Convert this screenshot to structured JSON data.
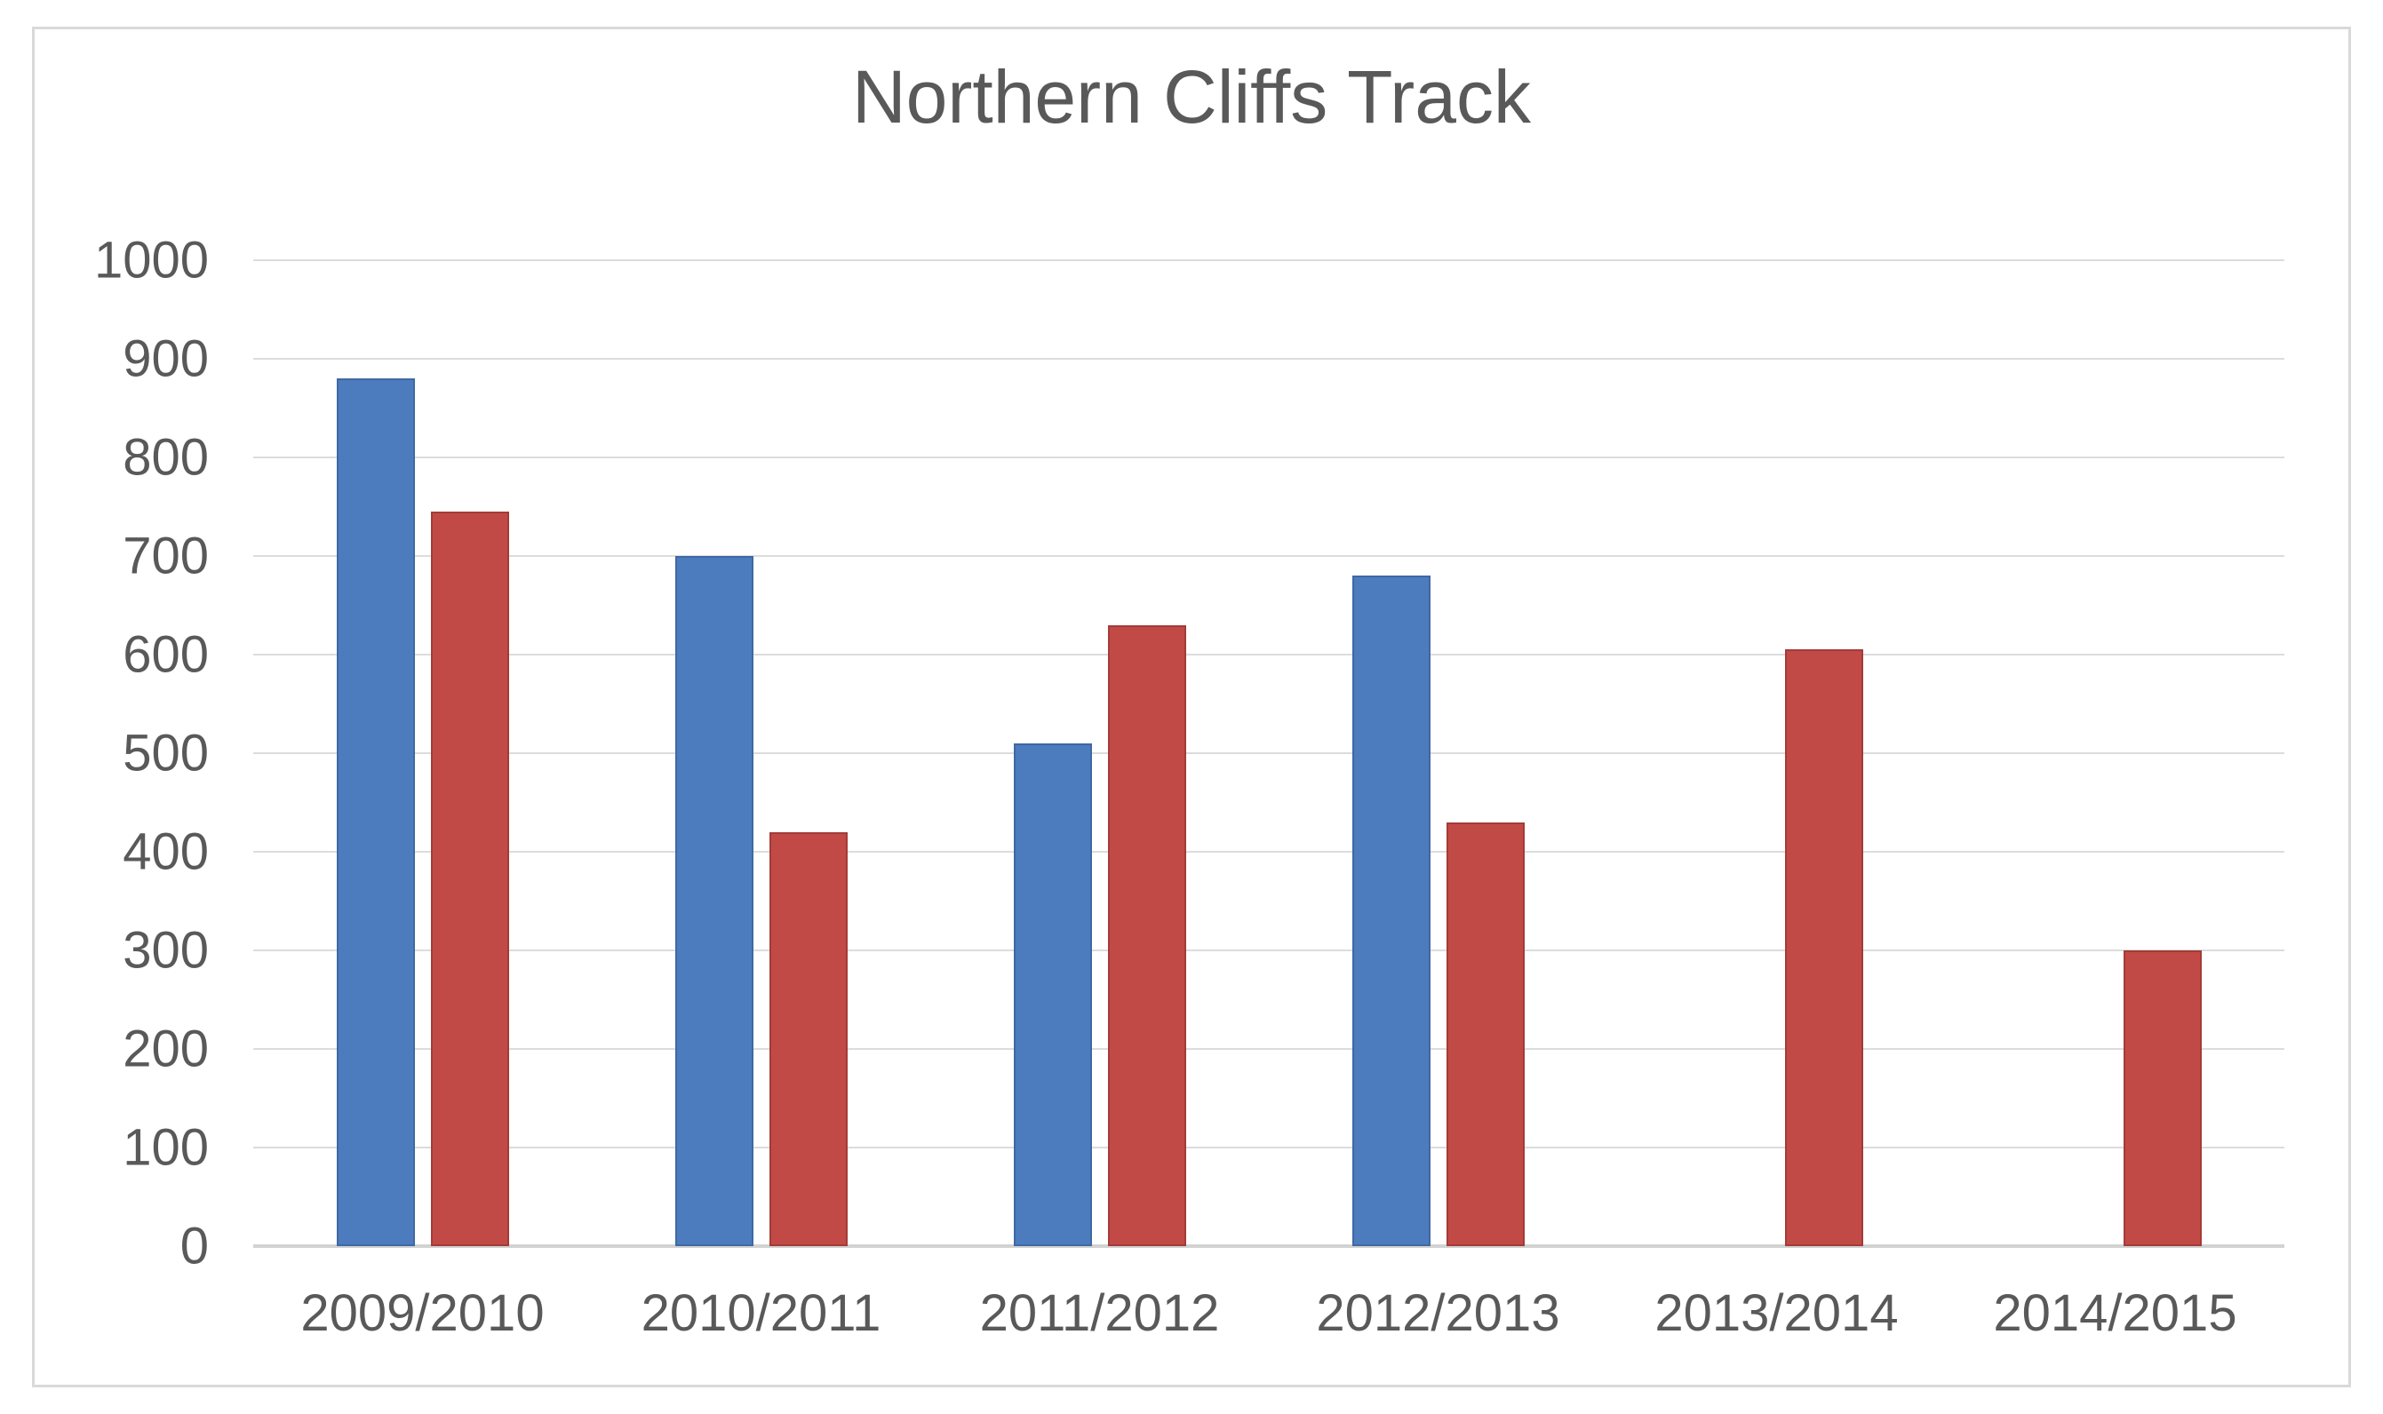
{
  "chart_data": {
    "type": "bar",
    "title": "Northern Cliffs Track",
    "categories": [
      "2009/2010",
      "2010/2011",
      "2011/2012",
      "2012/2013",
      "2013/2014",
      "2014/2015"
    ],
    "series": [
      {
        "name": "blue",
        "color": "#4c7cbe",
        "border_color": "#3e69a3",
        "values": [
          880,
          700,
          510,
          680,
          0,
          0
        ]
      },
      {
        "name": "red",
        "color": "#c24a46",
        "border_color": "#a33b38",
        "values": [
          745,
          420,
          630,
          430,
          605,
          300
        ]
      }
    ],
    "ylim": [
      0,
      1000
    ],
    "ytick_step": 100,
    "yticks": [
      0,
      100,
      200,
      300,
      400,
      500,
      600,
      700,
      800,
      900,
      1000
    ],
    "grid": true,
    "legend_position": "none",
    "colors": {
      "text": "#595959",
      "gridline": "#dcdcdc",
      "axis_line": "#d2d2d2",
      "chart_border": "#d9d9d9",
      "background": "#ffffff"
    }
  }
}
